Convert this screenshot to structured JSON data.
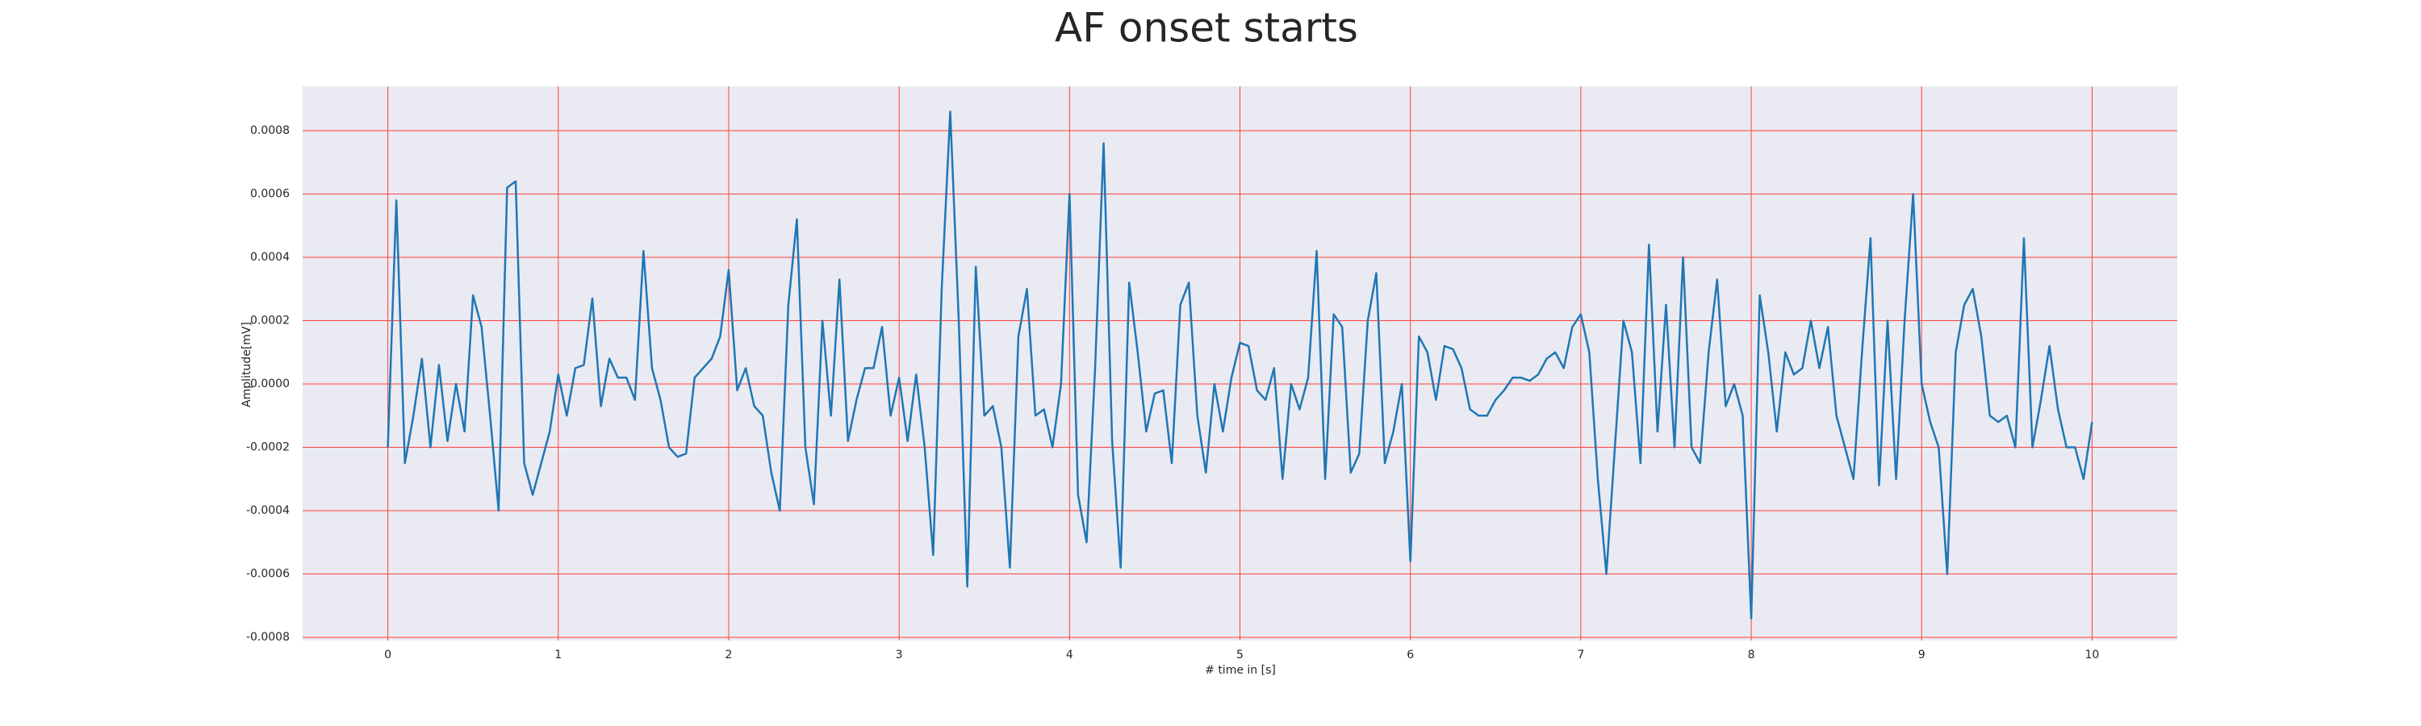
{
  "chart_data": {
    "type": "line",
    "title": "AF onset starts",
    "x_label": "# time in [s]",
    "y_label": "Amplitude[mV]",
    "color": "#1f77b4",
    "grid": true,
    "grid_color": "#ff4040",
    "background": "#eaeaf2",
    "xlim": [
      -0.5,
      10.5
    ],
    "ylim": [
      -0.00081,
      0.00094
    ],
    "xticks": [
      0,
      1,
      2,
      3,
      4,
      5,
      6,
      7,
      8,
      9,
      10
    ],
    "yticks": [
      -0.0008,
      -0.0006,
      -0.0004,
      -0.0002,
      {
        "value": 0,
        "label": "0.0000"
      },
      0.0002,
      0.0004,
      0.0006,
      0.0008
    ],
    "x": [
      0,
      0.05,
      0.1,
      0.15,
      0.2,
      0.25,
      0.3,
      0.35,
      0.4,
      0.45,
      0.5,
      0.55,
      0.6,
      0.65,
      0.7,
      0.75,
      0.8,
      0.85,
      0.9,
      0.95,
      1,
      1.05,
      1.1,
      1.15,
      1.2,
      1.25,
      1.3,
      1.35,
      1.4,
      1.45,
      1.5,
      1.55,
      1.6,
      1.65,
      1.7,
      1.75,
      1.8,
      1.85,
      1.9,
      1.95,
      2,
      2.05,
      2.1,
      2.15,
      2.2,
      2.25,
      2.3,
      2.35,
      2.4,
      2.45,
      2.5,
      2.55,
      2.6,
      2.65,
      2.7,
      2.75,
      2.8,
      2.85,
      2.9,
      2.95,
      3,
      3.05,
      3.1,
      3.15,
      3.2,
      3.25,
      3.3,
      3.35,
      3.4,
      3.45,
      3.5,
      3.55,
      3.6,
      3.65,
      3.7,
      3.75,
      3.8,
      3.85,
      3.9,
      3.95,
      4,
      4.05,
      4.1,
      4.15,
      4.2,
      4.25,
      4.3,
      4.35,
      4.4,
      4.45,
      4.5,
      4.55,
      4.6,
      4.65,
      4.7,
      4.75,
      4.8,
      4.85,
      4.9,
      4.95,
      5,
      5.05,
      5.1,
      5.15,
      5.2,
      5.25,
      5.3,
      5.35,
      5.4,
      5.45,
      5.5,
      5.55,
      5.6,
      5.65,
      5.7,
      5.75,
      5.8,
      5.85,
      5.9,
      5.95,
      6,
      6.05,
      6.1,
      6.15,
      6.2,
      6.25,
      6.3,
      6.35,
      6.4,
      6.45,
      6.5,
      6.55,
      6.6,
      6.65,
      6.7,
      6.75,
      6.8,
      6.85,
      6.9,
      6.95,
      7,
      7.05,
      7.1,
      7.15,
      7.2,
      7.25,
      7.3,
      7.35,
      7.4,
      7.45,
      7.5,
      7.55,
      7.6,
      7.65,
      7.7,
      7.75,
      7.8,
      7.85,
      7.9,
      7.95,
      8,
      8.05,
      8.1,
      8.15,
      8.2,
      8.25,
      8.3,
      8.35,
      8.4,
      8.45,
      8.5,
      8.55,
      8.6,
      8.65,
      8.7,
      8.75,
      8.8,
      8.85,
      8.9,
      8.95,
      9,
      9.05,
      9.1,
      9.15,
      9.2,
      9.25,
      9.3,
      9.35,
      9.4,
      9.45,
      9.5,
      9.55,
      9.6,
      9.65,
      9.7,
      9.75,
      9.8,
      9.85,
      9.9,
      9.95,
      10
    ],
    "values": [
      -0.0002,
      0.00058,
      -0.00025,
      -0.0001,
      8e-05,
      -0.0002,
      6e-05,
      -0.00018,
      0,
      -0.00015,
      0.00028,
      0.00018,
      -0.0001,
      -0.0004,
      0.00062,
      0.00064,
      -0.00025,
      -0.00035,
      -0.00025,
      -0.00015,
      3e-05,
      -0.0001,
      5e-05,
      6e-05,
      0.00027,
      -7e-05,
      8e-05,
      2e-05,
      2e-05,
      -5e-05,
      0.00042,
      5e-05,
      -5e-05,
      -0.0002,
      -0.00023,
      -0.00022,
      2e-05,
      5e-05,
      8e-05,
      0.00015,
      0.00036,
      -2e-05,
      5e-05,
      -7e-05,
      -0.0001,
      -0.00028,
      -0.0004,
      0.00025,
      0.00052,
      -0.0002,
      -0.00038,
      0.0002,
      -0.0001,
      0.00033,
      -0.00018,
      -5e-05,
      5e-05,
      5e-05,
      0.00018,
      -0.0001,
      2e-05,
      -0.00018,
      3e-05,
      -0.0002,
      -0.00054,
      0.0003,
      0.00086,
      0.0002,
      -0.00064,
      0.00037,
      -0.0001,
      -7e-05,
      -0.0002,
      -0.00058,
      0.00015,
      0.0003,
      -0.0001,
      -8e-05,
      -0.0002,
      0,
      0.0006,
      -0.00035,
      -0.0005,
      5e-05,
      0.00076,
      -0.00018,
      -0.00058,
      0.00032,
      0.0001,
      -0.00015,
      -3e-05,
      -2e-05,
      -0.00025,
      0.00025,
      0.00032,
      -0.0001,
      -0.00028,
      0,
      -0.00015,
      2e-05,
      0.00013,
      0.00012,
      -2e-05,
      -5e-05,
      5e-05,
      -0.0003,
      0,
      -8e-05,
      2e-05,
      0.00042,
      -0.0003,
      0.00022,
      0.00018,
      -0.00028,
      -0.00022,
      0.0002,
      0.00035,
      -0.00025,
      -0.00015,
      0,
      -0.00056,
      0.00015,
      0.0001,
      -5e-05,
      0.00012,
      0.00011,
      5e-05,
      -8e-05,
      -0.0001,
      -0.0001,
      -5e-05,
      -2e-05,
      2e-05,
      2e-05,
      1e-05,
      3e-05,
      8e-05,
      0.0001,
      5e-05,
      0.00018,
      0.00022,
      0.0001,
      -0.0003,
      -0.0006,
      -0.0002,
      0.0002,
      0.0001,
      -0.00025,
      0.00044,
      -0.00015,
      0.00025,
      -0.0002,
      0.0004,
      -0.0002,
      -0.00025,
      0.0001,
      0.00033,
      -7e-05,
      0,
      -0.0001,
      -0.00074,
      0.00028,
      0.0001,
      -0.00015,
      0.0001,
      3e-05,
      5e-05,
      0.0002,
      5e-05,
      0.00018,
      -0.0001,
      -0.0002,
      -0.0003,
      0.0001,
      0.00046,
      -0.00032,
      0.0002,
      -0.0003,
      0.0002,
      0.0006,
      0,
      -0.00012,
      -0.0002,
      -0.0006,
      0.0001,
      0.00025,
      0.0003,
      0.00015,
      -0.0001,
      -0.00012,
      -0.0001,
      -0.0002,
      0.00046,
      -0.0002,
      -5e-05,
      0.00012,
      -8e-05,
      -0.0002,
      -0.0002,
      -0.0003,
      -0.00012
    ]
  }
}
